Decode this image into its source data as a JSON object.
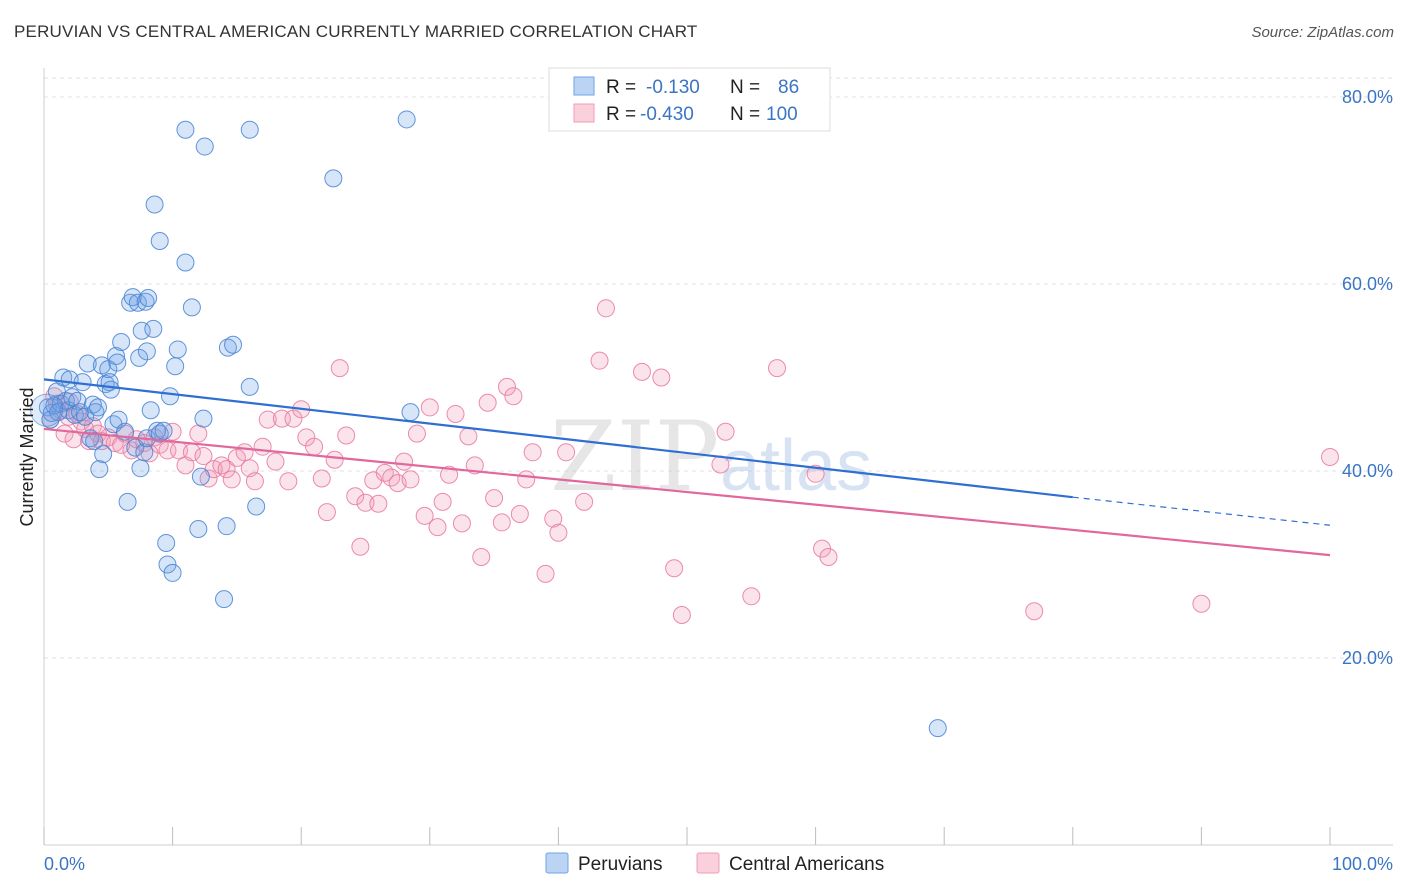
{
  "title": "PERUVIAN VS CENTRAL AMERICAN CURRENTLY MARRIED CORRELATION CHART",
  "source": "Source: ZipAtlas.com",
  "watermark": {
    "part1": "ZIP",
    "part2": "atlas"
  },
  "colors": {
    "blue": "#6fa3e6",
    "blue_line": "#2f6fd1",
    "pink": "#f29cb6",
    "pink_line": "#e0689a",
    "tick": "#3a75c4",
    "grid": "#e0e0e0"
  },
  "stats": {
    "r_label": "R =",
    "n_label": "N =",
    "peruvians": {
      "r": "-0.130",
      "n": "86"
    },
    "central": {
      "r": "-0.430",
      "n": "100"
    }
  },
  "legend": {
    "peruvians": "Peruvians",
    "central": "Central Americans"
  },
  "chart_data": {
    "type": "scatter",
    "title": "PERUVIAN VS CENTRAL AMERICAN CURRENTLY MARRIED CORRELATION CHART",
    "xlabel": "",
    "ylabel": "Currently Married",
    "xlim": [
      0,
      100
    ],
    "ylim": [
      0,
      84
    ],
    "y_ticks": [
      20,
      40,
      60,
      80
    ],
    "y_tick_labels": [
      "20.0%",
      "40.0%",
      "60.0%",
      "80.0%"
    ],
    "x_tick_labels": [
      "0.0%",
      "100.0%"
    ],
    "grid": true,
    "legend_position": "bottom-center",
    "series": [
      {
        "name": "Peruvians",
        "color": "#6fa3e6",
        "trend": {
          "x": [
            0,
            80,
            100
          ],
          "y": [
            49.8,
            37.2,
            34.2
          ],
          "solid_until": 80
        },
        "points": [
          [
            0.3,
            46.8
          ],
          [
            0.5,
            45.5
          ],
          [
            0.6,
            46.2
          ],
          [
            0.8,
            47.0
          ],
          [
            1.0,
            48.5
          ],
          [
            1.1,
            46.3
          ],
          [
            1.3,
            47.2
          ],
          [
            1.5,
            50.0
          ],
          [
            1.7,
            47.5
          ],
          [
            1.9,
            46.5
          ],
          [
            2.0,
            49.8
          ],
          [
            2.2,
            47.9
          ],
          [
            2.4,
            46.0
          ],
          [
            2.6,
            47.5
          ],
          [
            2.8,
            46.3
          ],
          [
            3.0,
            49.5
          ],
          [
            3.2,
            45.8
          ],
          [
            3.4,
            51.5
          ],
          [
            3.6,
            43.5
          ],
          [
            3.8,
            47.1
          ],
          [
            3.9,
            43.2
          ],
          [
            4.0,
            46.3
          ],
          [
            4.2,
            46.8
          ],
          [
            4.3,
            40.2
          ],
          [
            4.5,
            51.3
          ],
          [
            4.6,
            41.8
          ],
          [
            4.8,
            49.3
          ],
          [
            5.0,
            50.9
          ],
          [
            5.1,
            49.5
          ],
          [
            5.2,
            48.7
          ],
          [
            5.4,
            45.0
          ],
          [
            5.6,
            52.3
          ],
          [
            5.7,
            51.6
          ],
          [
            5.8,
            45.5
          ],
          [
            6.0,
            53.8
          ],
          [
            6.3,
            44.2
          ],
          [
            6.5,
            36.7
          ],
          [
            6.7,
            58.0
          ],
          [
            6.9,
            58.6
          ],
          [
            7.1,
            42.5
          ],
          [
            7.3,
            58.0
          ],
          [
            7.4,
            52.1
          ],
          [
            7.5,
            40.3
          ],
          [
            7.6,
            55.0
          ],
          [
            7.8,
            42.0
          ],
          [
            7.9,
            58.1
          ],
          [
            8.0,
            43.5
          ],
          [
            8.1,
            58.5
          ],
          [
            8.3,
            46.5
          ],
          [
            8.5,
            55.2
          ],
          [
            8.6,
            68.5
          ],
          [
            8.8,
            44.3
          ],
          [
            9.0,
            44.0
          ],
          [
            9.3,
            44.3
          ],
          [
            9.5,
            32.3
          ],
          [
            9.6,
            30.0
          ],
          [
            9.8,
            48.0
          ],
          [
            10.0,
            29.1
          ],
          [
            10.2,
            51.2
          ],
          [
            10.4,
            53.0
          ],
          [
            11.0,
            62.3
          ],
          [
            11.0,
            76.5
          ],
          [
            11.5,
            57.5
          ],
          [
            12.0,
            33.8
          ],
          [
            12.2,
            39.4
          ],
          [
            12.4,
            45.6
          ],
          [
            12.5,
            74.7
          ],
          [
            14.0,
            26.3
          ],
          [
            14.2,
            34.1
          ],
          [
            14.3,
            53.2
          ],
          [
            14.7,
            53.5
          ],
          [
            16.0,
            49.0
          ],
          [
            16.5,
            36.2
          ],
          [
            16.0,
            76.5
          ],
          [
            22.5,
            71.3
          ],
          [
            28.2,
            77.6
          ],
          [
            28.5,
            46.3
          ],
          [
            69.5,
            12.5
          ],
          [
            9.0,
            64.6
          ],
          [
            8.0,
            52.8
          ]
        ]
      },
      {
        "name": "Central Americans",
        "color": "#f29cb6",
        "trend": {
          "x": [
            0,
            100
          ],
          "y": [
            44.5,
            31.0
          ]
        },
        "points": [
          [
            0.5,
            45.5
          ],
          [
            0.8,
            48.0
          ],
          [
            1.0,
            47.2
          ],
          [
            1.3,
            46.5
          ],
          [
            1.6,
            44.0
          ],
          [
            1.9,
            45.8
          ],
          [
            2.0,
            47.4
          ],
          [
            2.3,
            43.4
          ],
          [
            2.6,
            46.1
          ],
          [
            2.9,
            45.3
          ],
          [
            3.2,
            44.5
          ],
          [
            3.5,
            43.2
          ],
          [
            3.8,
            44.8
          ],
          [
            4.2,
            44.0
          ],
          [
            4.5,
            43.2
          ],
          [
            5.0,
            43.6
          ],
          [
            5.5,
            43.0
          ],
          [
            6.0,
            42.8
          ],
          [
            6.3,
            44.0
          ],
          [
            6.8,
            42.2
          ],
          [
            7.2,
            43.4
          ],
          [
            7.8,
            43.0
          ],
          [
            8.2,
            41.9
          ],
          [
            8.6,
            43.6
          ],
          [
            9.0,
            42.8
          ],
          [
            9.6,
            42.2
          ],
          [
            10.0,
            44.2
          ],
          [
            10.5,
            42.2
          ],
          [
            11.0,
            40.6
          ],
          [
            11.5,
            42.0
          ],
          [
            12.0,
            44.0
          ],
          [
            12.4,
            41.6
          ],
          [
            12.8,
            39.2
          ],
          [
            13.2,
            40.2
          ],
          [
            13.8,
            40.6
          ],
          [
            14.2,
            40.2
          ],
          [
            14.6,
            39.1
          ],
          [
            15.0,
            41.4
          ],
          [
            15.6,
            42.0
          ],
          [
            16.0,
            40.3
          ],
          [
            16.4,
            38.9
          ],
          [
            17.0,
            42.6
          ],
          [
            17.4,
            45.5
          ],
          [
            18.0,
            41.0
          ],
          [
            18.5,
            45.6
          ],
          [
            19.0,
            38.9
          ],
          [
            19.4,
            45.6
          ],
          [
            20.0,
            46.6
          ],
          [
            20.4,
            43.6
          ],
          [
            21.0,
            42.6
          ],
          [
            21.6,
            39.2
          ],
          [
            22.0,
            35.6
          ],
          [
            22.6,
            41.2
          ],
          [
            23.0,
            51.0
          ],
          [
            23.5,
            43.8
          ],
          [
            24.2,
            37.3
          ],
          [
            24.6,
            31.9
          ],
          [
            25.0,
            36.6
          ],
          [
            25.6,
            39.0
          ],
          [
            26.0,
            36.5
          ],
          [
            26.5,
            39.8
          ],
          [
            27.0,
            39.3
          ],
          [
            27.5,
            38.7
          ],
          [
            28.0,
            41.0
          ],
          [
            28.5,
            39.1
          ],
          [
            29.0,
            44.0
          ],
          [
            29.6,
            35.2
          ],
          [
            30.0,
            46.8
          ],
          [
            30.6,
            34.0
          ],
          [
            31.0,
            36.7
          ],
          [
            31.5,
            39.6
          ],
          [
            32.0,
            46.1
          ],
          [
            32.5,
            34.4
          ],
          [
            33.0,
            43.7
          ],
          [
            33.5,
            40.6
          ],
          [
            34.0,
            30.8
          ],
          [
            34.5,
            47.3
          ],
          [
            35.0,
            37.1
          ],
          [
            35.6,
            34.5
          ],
          [
            36.0,
            49.0
          ],
          [
            36.5,
            48.0
          ],
          [
            37.0,
            35.4
          ],
          [
            37.5,
            39.1
          ],
          [
            38.0,
            42.0
          ],
          [
            39.0,
            29.0
          ],
          [
            39.6,
            34.9
          ],
          [
            40.0,
            33.4
          ],
          [
            40.6,
            42.0
          ],
          [
            42.0,
            36.7
          ],
          [
            43.2,
            51.8
          ],
          [
            43.7,
            57.4
          ],
          [
            46.5,
            50.6
          ],
          [
            48.0,
            50.0
          ],
          [
            49.0,
            29.6
          ],
          [
            49.6,
            24.6
          ],
          [
            52.6,
            40.7
          ],
          [
            55.0,
            26.6
          ],
          [
            60.0,
            39.7
          ],
          [
            60.5,
            31.7
          ],
          [
            61.0,
            30.8
          ],
          [
            77.0,
            25.0
          ],
          [
            90.0,
            25.8
          ],
          [
            100.0,
            41.5
          ],
          [
            57.0,
            51.0
          ],
          [
            53.0,
            44.2
          ]
        ]
      }
    ]
  }
}
